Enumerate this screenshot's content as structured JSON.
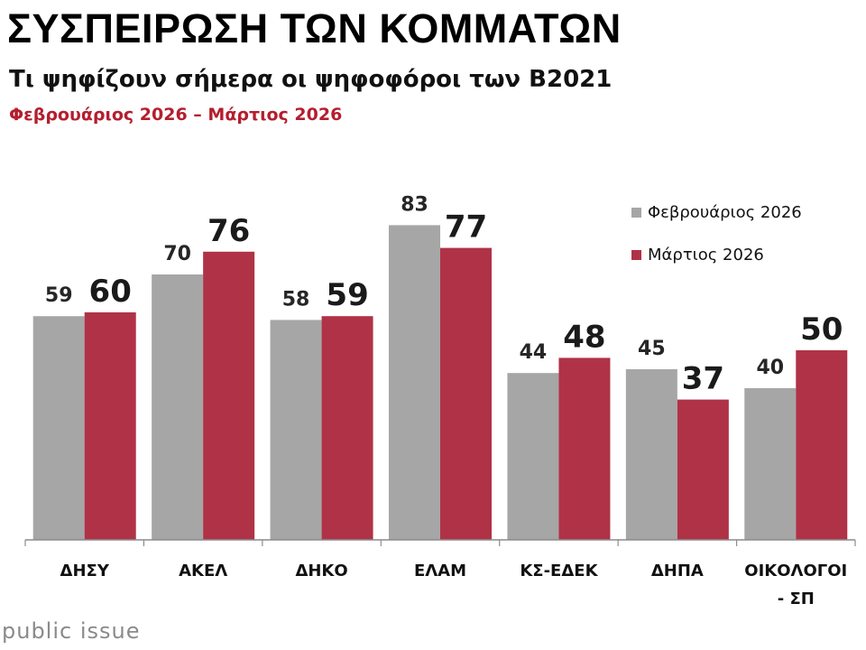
{
  "header": {
    "title": "ΣΥΣΠΕΙΡΩΣΗ ΤΩΝ ΚΟΜΜΑΤΩΝ",
    "subtitle": "Τι ψηφίζουν σήμερα οι ψηφοφόροι των Β2021",
    "period": "Φεβρουάριος 2026 – Μάρτιος 2026"
  },
  "brand": {
    "name": "public issue"
  },
  "colors": {
    "series_feb": "#a6a6a6",
    "series_mar": "#b03247",
    "period_text": "#b41e2e",
    "axis": "#8c8c8c"
  },
  "chart_data": {
    "type": "bar",
    "title": "ΣΥΣΠΕΙΡΩΣΗ ΤΩΝ ΚΟΜΜΑΤΩΝ",
    "subtitle": "Τι ψηφίζουν σήμερα οι ψηφοφόροι των Β2021",
    "xlabel": "",
    "ylabel": "",
    "ylim": [
      0,
      90
    ],
    "grid": false,
    "legend": "top-right",
    "categories": [
      [
        "ΔΗΣΥ"
      ],
      [
        "ΑΚΕΛ"
      ],
      [
        "ΔΗΚΟ"
      ],
      [
        "ΕΛΑΜ"
      ],
      [
        "ΚΣ-ΕΔΕΚ"
      ],
      [
        "ΔΗΠΑ"
      ],
      [
        "ΟΙΚΟΛΟΓΟΙ",
        "- ΣΠ"
      ]
    ],
    "series": [
      {
        "name": "Φεβρουάριος 2026",
        "values": [
          59,
          70,
          58,
          83,
          44,
          45,
          40
        ]
      },
      {
        "name": "Μάρτιος 2026",
        "values": [
          60,
          76,
          59,
          77,
          48,
          37,
          50
        ]
      }
    ]
  }
}
